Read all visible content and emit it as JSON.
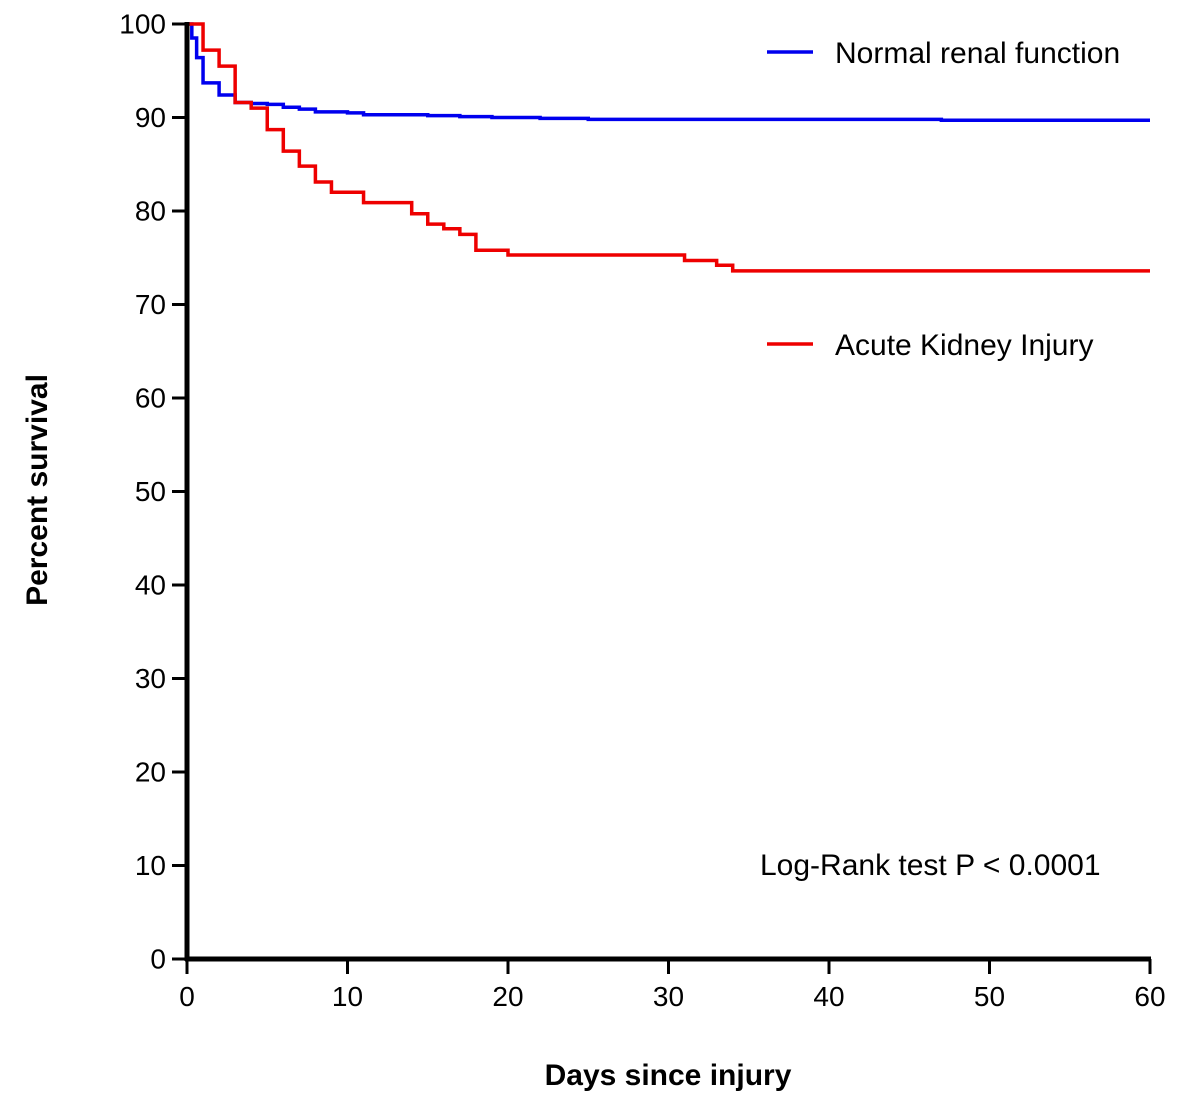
{
  "chart_data": {
    "type": "line",
    "step": true,
    "xlabel": "Days since injury",
    "ylabel": "Percent survival",
    "xlim": [
      0,
      60
    ],
    "ylim": [
      0,
      100
    ],
    "xticks": [
      0,
      10,
      20,
      30,
      40,
      50,
      60
    ],
    "yticks": [
      0,
      10,
      20,
      30,
      40,
      50,
      60,
      70,
      80,
      90,
      100
    ],
    "grid": false,
    "annotation": "Log-Rank test P < 0.0001",
    "series": [
      {
        "name": "Normal renal function",
        "color": "#0000ee",
        "x": [
          0,
          0.3,
          0.6,
          1,
          2,
          3,
          4,
          5,
          6,
          7,
          8,
          10,
          11,
          15,
          17,
          19,
          20,
          22,
          25,
          35,
          40,
          47,
          60
        ],
        "y": [
          100,
          98.5,
          96.4,
          93.7,
          92.4,
          91.6,
          91.5,
          91.4,
          91.1,
          90.9,
          90.6,
          90.5,
          90.3,
          90.2,
          90.1,
          90.0,
          90.0,
          89.9,
          89.8,
          89.8,
          89.8,
          89.7,
          89.7
        ]
      },
      {
        "name": "Acute Kidney Injury",
        "color": "#ee0000",
        "x": [
          0,
          1,
          2,
          3,
          4,
          5,
          6,
          7,
          8,
          9,
          11,
          14,
          15,
          16,
          17,
          18,
          20,
          31,
          33,
          34,
          60
        ],
        "y": [
          100,
          97.2,
          95.5,
          91.6,
          91.0,
          88.7,
          86.4,
          84.8,
          83.1,
          82.0,
          80.9,
          79.7,
          78.6,
          78.1,
          77.5,
          75.8,
          75.3,
          74.7,
          74.2,
          73.6,
          73.6
        ]
      }
    ]
  }
}
